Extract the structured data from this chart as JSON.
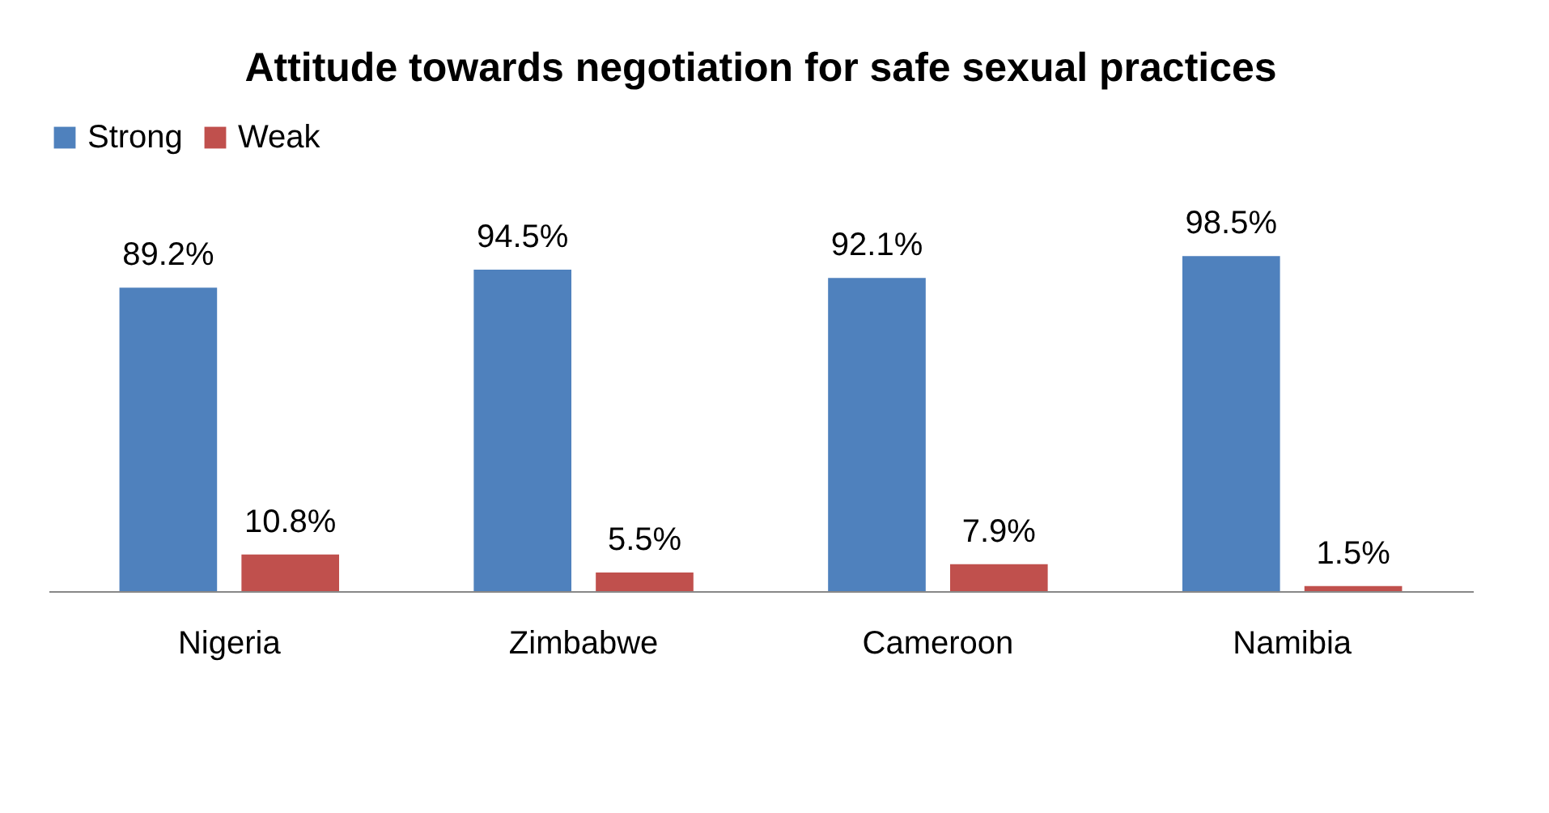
{
  "chart_data": {
    "type": "bar",
    "title": "Attitude towards negotiation for safe sexual practices",
    "categories": [
      "Nigeria",
      "Zimbabwe",
      "Cameroon",
      "Namibia"
    ],
    "series": [
      {
        "name": "Strong",
        "color": "#4f81bd",
        "values": [
          89.2,
          94.5,
          92.1,
          98.5
        ],
        "value_labels": [
          "89.2%",
          "94.5%",
          "92.1%",
          "98.5%"
        ]
      },
      {
        "name": "Weak",
        "color": "#c0504d",
        "values": [
          10.8,
          5.5,
          7.9,
          1.5
        ],
        "value_labels": [
          "10.8%",
          "5.5%",
          "7.9%",
          "1.5%"
        ]
      }
    ],
    "legend": "top",
    "grid": false
  }
}
